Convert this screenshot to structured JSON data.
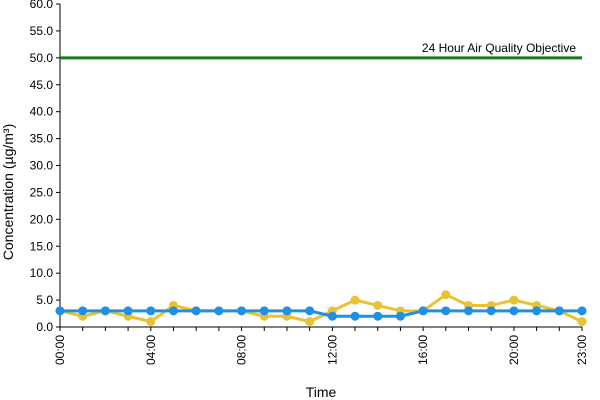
{
  "chart_data": {
    "type": "line",
    "xlabel": "Time",
    "ylabel": "Concentration (µg/m³)",
    "ylim": [
      0,
      60
    ],
    "yticks": [
      "0.0",
      "5.0",
      "10.0",
      "15.0",
      "20.0",
      "25.0",
      "30.0",
      "35.0",
      "40.0",
      "45.0",
      "50.0",
      "55.0",
      "60.0"
    ],
    "x_tick_labels": [
      "00:00",
      "04:00",
      "08:00",
      "12:00",
      "16:00",
      "20:00",
      "23:00"
    ],
    "x_tick_hours": [
      0,
      4,
      8,
      12,
      16,
      20,
      23
    ],
    "x": [
      0,
      1,
      2,
      3,
      4,
      5,
      6,
      7,
      8,
      9,
      10,
      11,
      12,
      13,
      14,
      15,
      16,
      17,
      18,
      19,
      20,
      21,
      22,
      23
    ],
    "grid": false,
    "series": [
      {
        "color": "#e8c232",
        "values": [
          3,
          2,
          3,
          2,
          1,
          4,
          3,
          3,
          3,
          2,
          2,
          1,
          3,
          5,
          4,
          3,
          3,
          6,
          4,
          4,
          5,
          4,
          3,
          1
        ]
      },
      {
        "color": "#1e90e6",
        "values": [
          3,
          3,
          3,
          3,
          3,
          3,
          3,
          3,
          3,
          3,
          3,
          3,
          2,
          2,
          2,
          2,
          3,
          3,
          3,
          3,
          3,
          3,
          3,
          3
        ]
      }
    ],
    "reference_line": {
      "label": "24 Hour Air Quality Objective",
      "value": 50,
      "color": "#1a7a1a"
    }
  }
}
